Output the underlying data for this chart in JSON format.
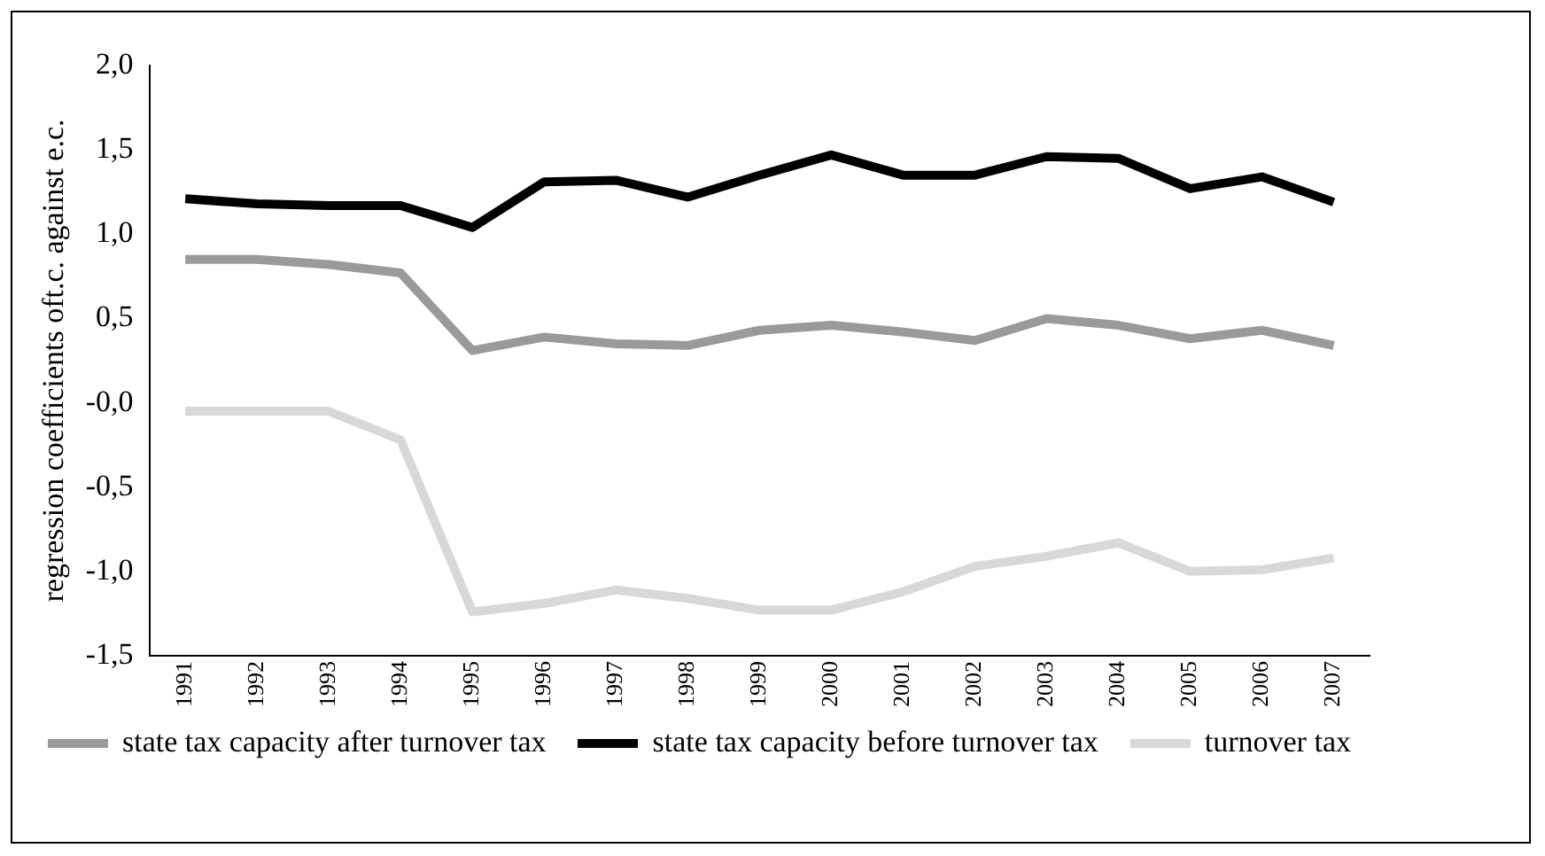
{
  "chart_data": {
    "type": "line",
    "ylabel": "regression coefficients oft.c. against e.c.",
    "categories": [
      "1991",
      "1992",
      "1993",
      "1994",
      "1995",
      "1996",
      "1997",
      "1998",
      "1999",
      "2000",
      "2001",
      "2002",
      "2003",
      "2004",
      "2005",
      "2006",
      "2007"
    ],
    "series": [
      {
        "name": "state tax capacity after turnover tax",
        "color": "#9a9a9a",
        "values": [
          0.85,
          0.85,
          0.82,
          0.77,
          0.31,
          0.39,
          0.35,
          0.34,
          0.43,
          0.46,
          0.42,
          0.37,
          0.5,
          0.46,
          0.38,
          0.43,
          0.34
        ]
      },
      {
        "name": "state tax capacity before turnover tax",
        "color": "#000000",
        "values": [
          1.21,
          1.18,
          1.17,
          1.17,
          1.04,
          1.31,
          1.32,
          1.22,
          1.35,
          1.47,
          1.35,
          1.35,
          1.46,
          1.45,
          1.27,
          1.34,
          1.19
        ]
      },
      {
        "name": "turnover tax",
        "color": "#d8d8d8",
        "values": [
          -0.05,
          -0.05,
          -0.05,
          -0.22,
          -1.24,
          -1.19,
          -1.11,
          -1.16,
          -1.23,
          -1.23,
          -1.12,
          -0.97,
          -0.91,
          -0.83,
          -1.0,
          -0.99,
          -0.92
        ]
      }
    ],
    "ylim": [
      -1.5,
      2.0
    ],
    "yticks": [
      {
        "value": -1.5,
        "label": "-1,5"
      },
      {
        "value": -1.0,
        "label": "-1,0"
      },
      {
        "value": -0.5,
        "label": "-0,5"
      },
      {
        "value": 0,
        "label": "-0,0"
      },
      {
        "value": 0.5,
        "label": "0,5"
      },
      {
        "value": 1.0,
        "label": "1,0"
      },
      {
        "value": 1.5,
        "label": "1,5"
      },
      {
        "value": 2.0,
        "label": "2,0"
      }
    ],
    "grid": false,
    "legend": "bottom",
    "marker": "none",
    "line_style": "solid"
  }
}
